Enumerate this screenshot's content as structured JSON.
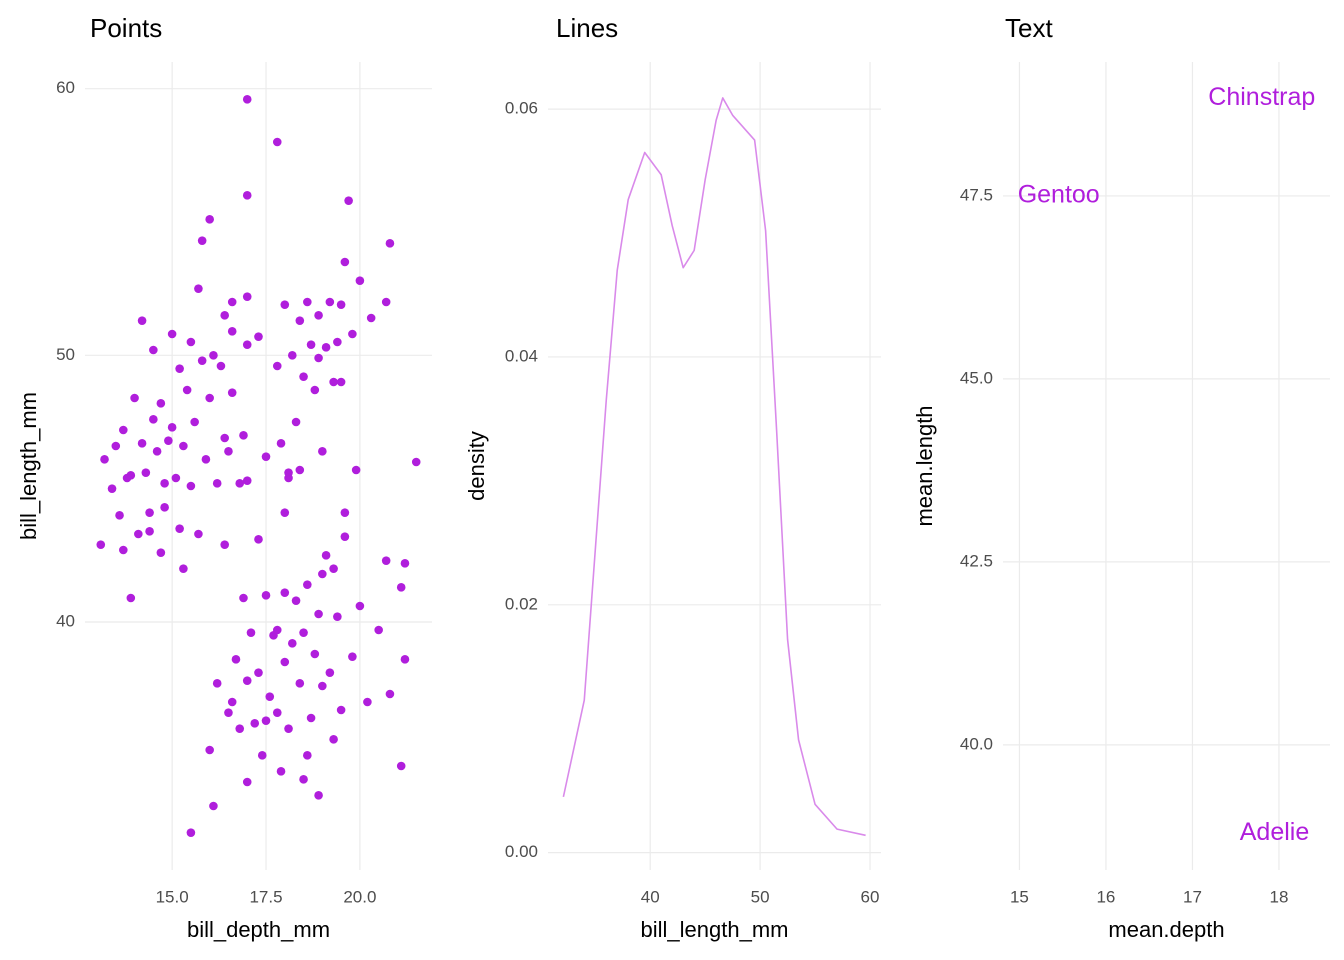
{
  "chart_data": [
    {
      "type": "scatter",
      "title": "Points",
      "x_label": "bill_depth_mm",
      "y_label": "bill_length_mm",
      "color": "#B01EDC",
      "x": [
        13.2,
        13.4,
        13.5,
        13.6,
        13.7,
        13.7,
        13.8,
        13.9,
        14.0,
        14.1,
        14.2,
        14.2,
        14.3,
        14.4,
        14.5,
        14.5,
        14.6,
        14.7,
        14.7,
        14.8,
        14.9,
        15.0,
        15.0,
        15.1,
        15.2,
        15.2,
        15.3,
        15.4,
        15.5,
        15.5,
        15.6,
        15.7,
        15.8,
        15.8,
        15.9,
        16.0,
        16.0,
        16.1,
        16.2,
        16.3,
        16.4,
        16.5,
        16.6,
        16.8,
        16.9,
        17.0,
        14.8,
        15.3,
        14.4,
        13.9,
        15.7,
        16.6,
        17.0,
        13.1,
        15.5,
        16.1,
        16.0,
        16.2,
        16.5,
        16.7,
        16.8,
        17.0,
        17.0,
        17.1,
        17.2,
        17.3,
        17.4,
        17.5,
        17.6,
        17.7,
        17.8,
        17.9,
        18.0,
        18.0,
        18.1,
        18.2,
        18.3,
        18.4,
        18.5,
        18.5,
        18.6,
        18.7,
        18.8,
        18.9,
        18.9,
        19.0,
        19.1,
        19.2,
        19.3,
        19.4,
        19.5,
        19.6,
        19.8,
        20.0,
        20.2,
        20.5,
        20.7,
        20.8,
        21.1,
        21.1,
        21.2,
        21.2,
        16.9,
        17.3,
        18.0,
        18.4,
        19.0,
        19.3,
        16.4,
        16.6,
        17.5,
        18.6,
        19.6,
        17.8,
        16.4,
        16.6,
        17.0,
        17.0,
        17.0,
        17.3,
        17.5,
        17.8,
        17.8,
        17.9,
        18.0,
        18.1,
        18.2,
        18.3,
        18.4,
        18.5,
        18.6,
        18.7,
        18.8,
        18.9,
        19.0,
        19.1,
        19.2,
        19.3,
        19.4,
        19.5,
        19.6,
        19.7,
        19.8,
        19.9,
        20.0,
        20.3,
        20.8,
        21.5,
        20.7,
        18.1,
        18.9,
        19.5
      ],
      "values": [
        46.1,
        45.0,
        46.6,
        44.0,
        42.7,
        47.2,
        45.4,
        40.9,
        48.4,
        43.3,
        46.7,
        51.3,
        45.6,
        44.1,
        47.6,
        50.2,
        46.4,
        42.6,
        48.2,
        45.2,
        46.8,
        47.3,
        50.8,
        45.4,
        43.5,
        49.5,
        46.6,
        48.7,
        50.5,
        45.1,
        47.5,
        52.5,
        54.3,
        49.8,
        46.1,
        55.1,
        48.4,
        50.0,
        45.2,
        49.6,
        51.5,
        46.4,
        48.6,
        45.2,
        47.0,
        50.4,
        44.3,
        42.0,
        43.4,
        45.5,
        43.3,
        52.0,
        45.3,
        42.9,
        32.1,
        33.1,
        35.2,
        37.7,
        36.6,
        38.6,
        36.0,
        34.0,
        37.8,
        39.6,
        36.2,
        38.1,
        35.0,
        41.0,
        37.2,
        39.5,
        36.6,
        34.4,
        38.5,
        41.1,
        36.0,
        39.2,
        40.8,
        37.7,
        34.1,
        39.6,
        41.4,
        36.4,
        38.8,
        33.5,
        40.3,
        37.6,
        42.5,
        38.1,
        35.6,
        40.2,
        36.7,
        43.2,
        38.7,
        40.6,
        37.0,
        39.7,
        42.3,
        37.3,
        34.6,
        41.3,
        38.6,
        42.2,
        40.9,
        43.1,
        44.1,
        45.7,
        41.8,
        42.0,
        42.9,
        37.0,
        36.3,
        35.0,
        44.1,
        39.7,
        46.9,
        50.9,
        59.6,
        56.0,
        52.2,
        50.7,
        46.2,
        58.0,
        49.6,
        46.7,
        51.9,
        45.4,
        50.0,
        47.5,
        51.3,
        49.2,
        52.0,
        50.4,
        48.7,
        51.5,
        46.4,
        50.3,
        52.0,
        49.0,
        50.5,
        51.9,
        53.5,
        55.8,
        50.8,
        45.7,
        52.8,
        51.4,
        54.2,
        46.0,
        52.0,
        45.6,
        49.9,
        49.0
      ],
      "xlim": [
        12.68,
        21.92
      ],
      "ylim": [
        30.7,
        61.0
      ],
      "xticks": [
        {
          "value": 15,
          "label": "15.0"
        },
        17.5,
        {
          "value": 20,
          "label": "20.0"
        }
      ],
      "yticks": [
        40,
        50,
        60
      ],
      "grid": true
    },
    {
      "type": "line",
      "title": "Lines",
      "x_label": "bill_length_mm",
      "y_label": "density",
      "color": "#D98AEA",
      "x": [
        32.1,
        34,
        36,
        37,
        38,
        39.5,
        41,
        42,
        43,
        44,
        45,
        46,
        46.6,
        47.5,
        48.5,
        49.5,
        50.5,
        51.5,
        52.5,
        53.5,
        55,
        57,
        59.6
      ],
      "values": [
        0.0045,
        0.0123,
        0.0365,
        0.047,
        0.0527,
        0.0565,
        0.0547,
        0.0506,
        0.0472,
        0.0486,
        0.0543,
        0.0591,
        0.0609,
        0.0595,
        0.0585,
        0.0575,
        0.0502,
        0.0341,
        0.0172,
        0.0091,
        0.0039,
        0.0019,
        0.0014
      ],
      "xlim": [
        30.7,
        61.0
      ],
      "ylim": [
        -0.0014,
        0.0638
      ],
      "xticks": [
        40,
        50,
        60
      ],
      "yticks": [
        {
          "value": 0,
          "label": "0.00"
        },
        0.02,
        0.04,
        0.06
      ],
      "grid": true
    },
    {
      "type": "text",
      "title": "Text",
      "x_label": "mean.depth",
      "y_label": "mean.length",
      "color": "#B01EDC",
      "labels": [
        "Adelie",
        "Chinstrap",
        "Gentoo"
      ],
      "x": [
        18.35,
        18.42,
        14.98
      ],
      "values": [
        38.79,
        48.83,
        47.5
      ],
      "xlim": [
        14.81,
        18.59
      ],
      "ylim": [
        38.29,
        49.33
      ],
      "xticks": [
        15,
        16,
        17,
        18
      ],
      "yticks": [
        {
          "value": 40,
          "label": "40.0"
        },
        42.5,
        {
          "value": 45,
          "label": "45.0"
        },
        47.5
      ],
      "grid": true
    }
  ]
}
